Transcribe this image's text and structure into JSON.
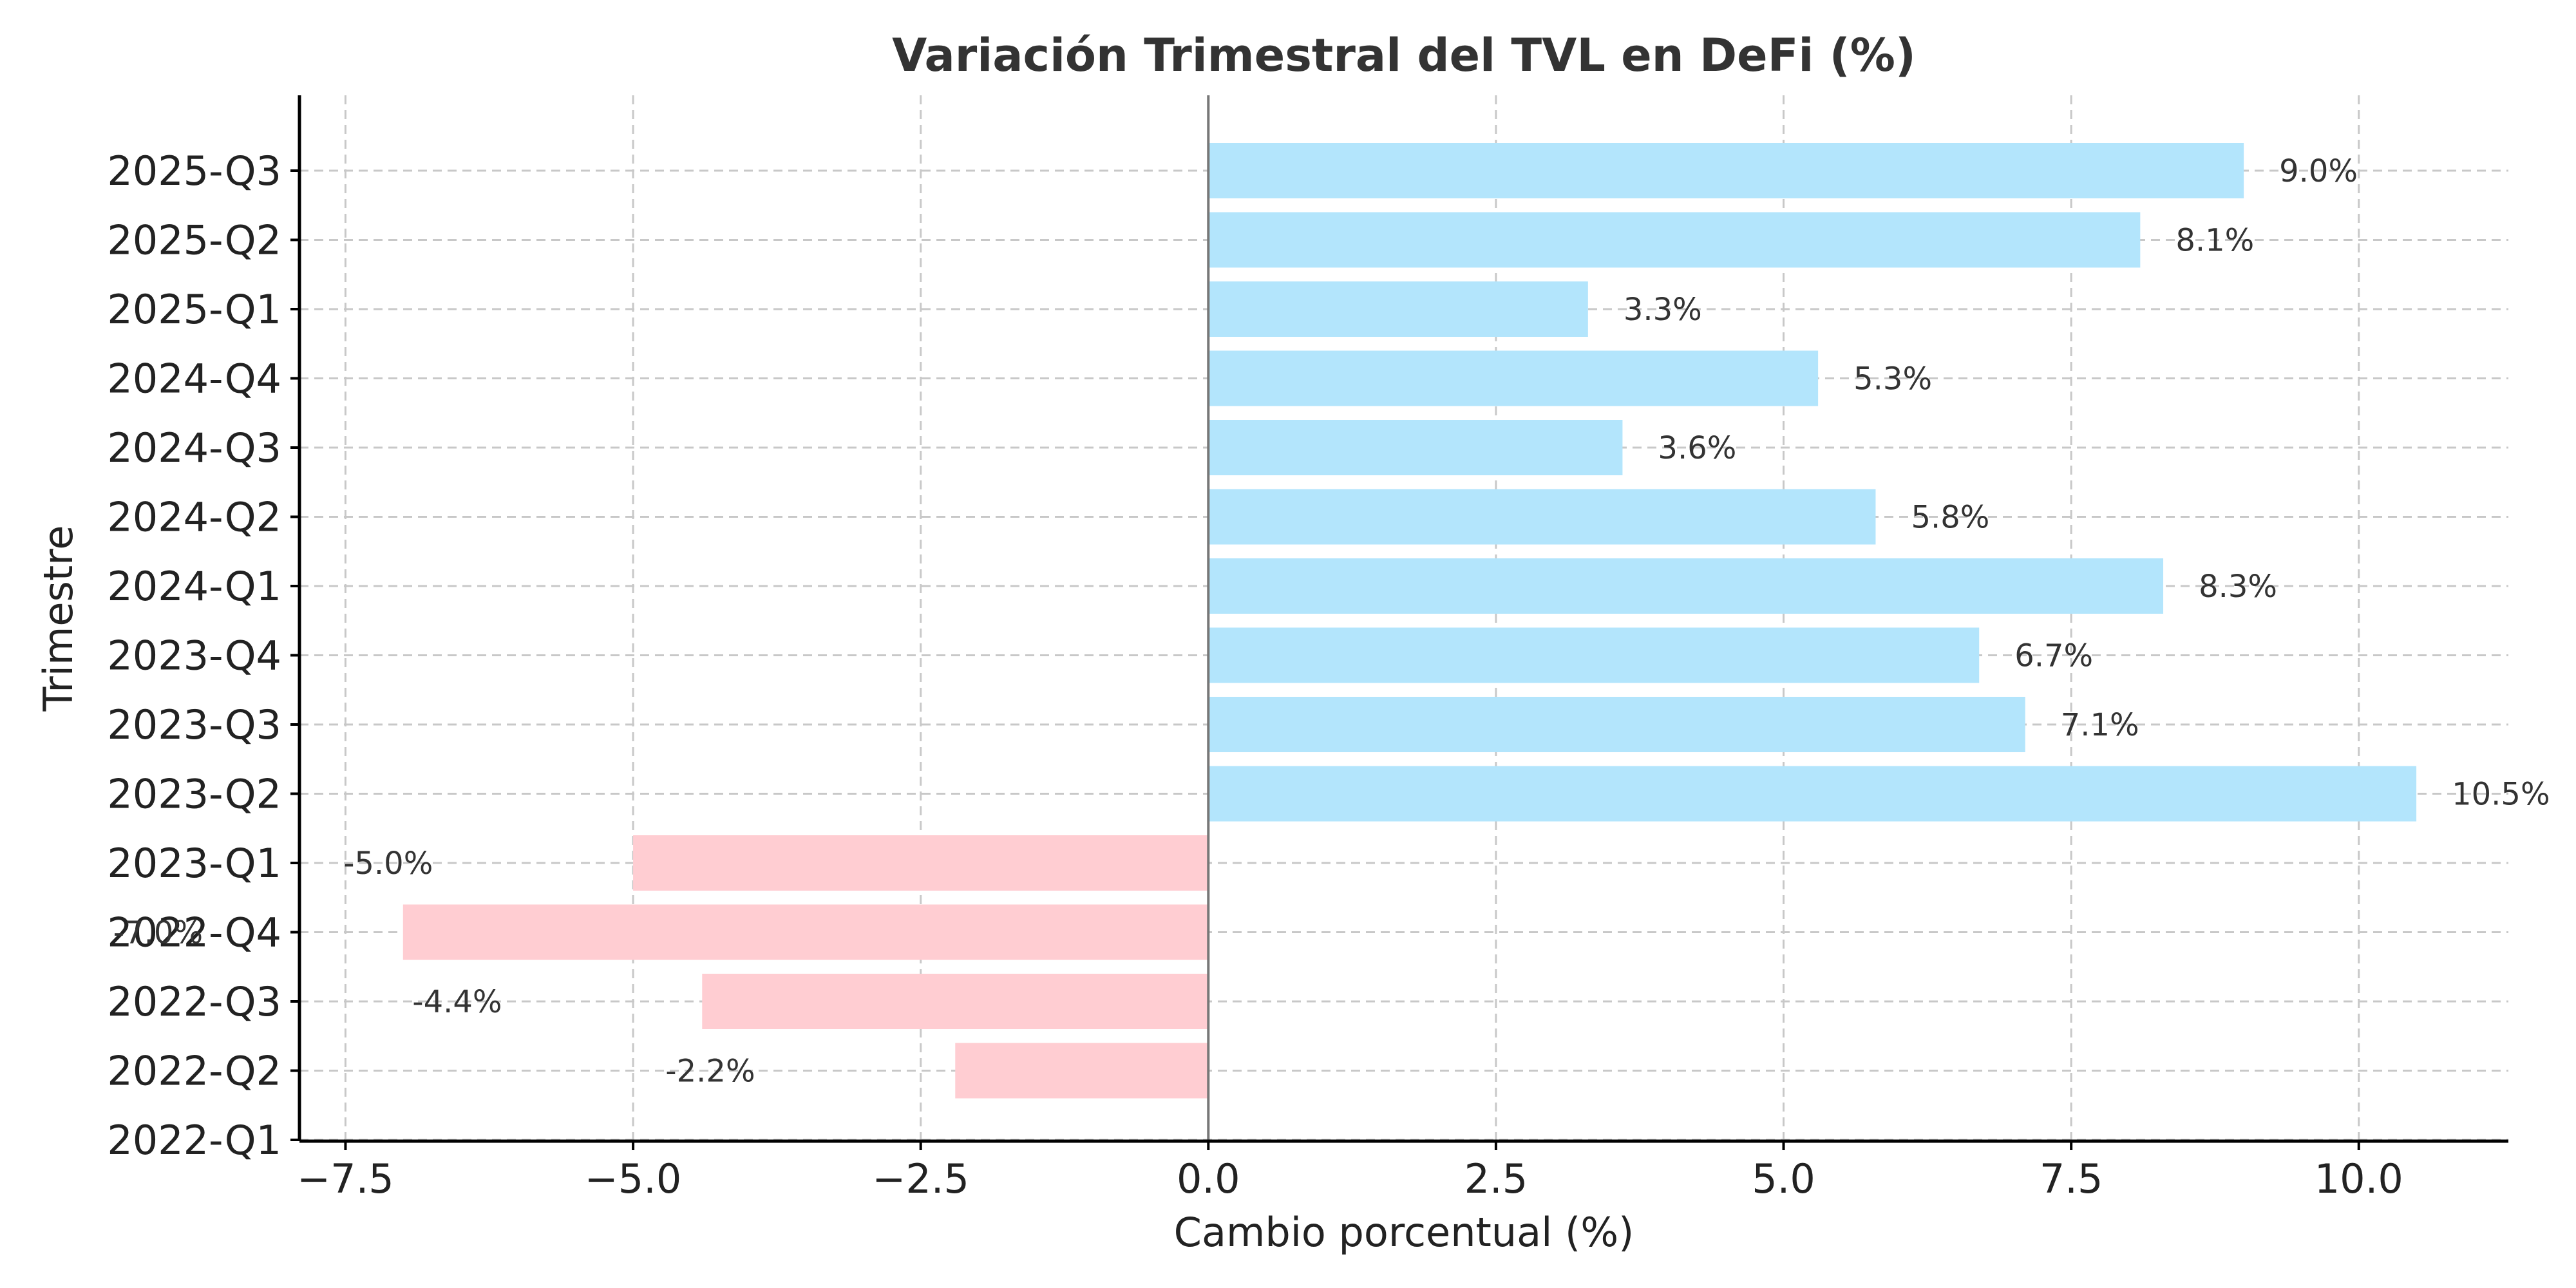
{
  "chart_data": {
    "type": "bar",
    "orientation": "horizontal",
    "title": "Variación Trimestral del TVL en DeFi (%)",
    "xlabel": "Cambio porcentual (%)",
    "ylabel": "Trimestre",
    "categories": [
      "2022-Q1",
      "2022-Q2",
      "2022-Q3",
      "2022-Q4",
      "2023-Q1",
      "2023-Q2",
      "2023-Q3",
      "2023-Q4",
      "2024-Q1",
      "2024-Q2",
      "2024-Q3",
      "2024-Q4",
      "2025-Q1",
      "2025-Q2",
      "2025-Q3"
    ],
    "values": [
      null,
      -2.2,
      -4.4,
      -7.0,
      -5.0,
      10.5,
      7.1,
      6.7,
      8.3,
      5.8,
      3.6,
      5.3,
      3.3,
      8.1,
      9.0
    ],
    "value_labels": [
      "",
      "-2.2%",
      "-4.4%",
      "-7.0%",
      "-5.0%",
      "10.5%",
      "7.1%",
      "6.7%",
      "8.3%",
      "5.8%",
      "3.6%",
      "5.3%",
      "3.3%",
      "8.1%",
      "9.0%"
    ],
    "xticks": [
      -7.5,
      -5.0,
      -2.5,
      0.0,
      2.5,
      5.0,
      7.5,
      10.0
    ],
    "xtick_labels": [
      "−7.5",
      "−5.0",
      "−2.5",
      "0.0",
      "2.5",
      "5.0",
      "7.5",
      "10.0"
    ],
    "xlim": [
      -7.9,
      11.3
    ],
    "grid": true,
    "colors": {
      "positive": "#b3e5fc",
      "negative": "#ffcdd2",
      "zero_line": "#777777"
    }
  }
}
